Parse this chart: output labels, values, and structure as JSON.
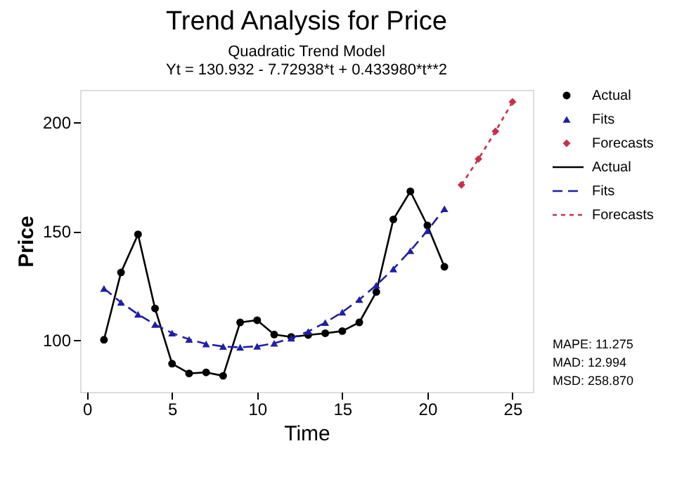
{
  "chart_data": {
    "type": "line",
    "title": "Trend Analysis for Price",
    "subtitle": "Quadratic Trend Model",
    "xlabel": "Time",
    "ylabel": "Price",
    "annotations": [
      "Yt = 130.932 - 7.72938*t  + 0.433980*t**2",
      "MAPE:      11.275",
      "MAD:       12.994",
      "MSD:     258.870"
    ],
    "series": [
      {
        "name": "Actual",
        "color": "#000000",
        "marker": "circle",
        "line_style": "solid",
        "x": [
          1,
          2,
          3,
          4,
          5,
          6,
          7,
          8,
          9,
          10,
          11,
          12,
          13,
          14,
          15,
          16,
          17,
          18,
          19,
          20,
          21
        ],
        "values": [
          100,
          131,
          148.5,
          114.4,
          89,
          84.5,
          85,
          83.4,
          108,
          109,
          102.4,
          101.3,
          102.2,
          103,
          104,
          108,
          122,
          155.4,
          168.3,
          152.6,
          133.6
        ]
      },
      {
        "name": "Fits",
        "color": "#1f1fa8",
        "marker": "triangle",
        "line_style": "dashed",
        "x": [
          1,
          2,
          3,
          4,
          5,
          6,
          7,
          8,
          9,
          10,
          11,
          12,
          13,
          14,
          15,
          16,
          17,
          18,
          19,
          20,
          21
        ],
        "values": [
          123.6,
          117.2,
          111.7,
          107.0,
          103.1,
          100.2,
          98.1,
          96.9,
          96.5,
          97.0,
          98.4,
          100.7,
          103.8,
          107.9,
          112.7,
          118.5,
          125.1,
          132.6,
          141.0,
          150.2,
          160.3
        ]
      },
      {
        "name": "Forecasts",
        "color": "#c8304a",
        "marker": "diamond",
        "line_style": "dotted",
        "x": [
          22,
          23,
          24,
          25
        ],
        "values": [
          171.3,
          183.2,
          195.9,
          209.5
        ]
      }
    ],
    "xlim": [
      -0.4,
      26.2
    ],
    "ylim": [
      76,
      215
    ],
    "xticks": [
      0,
      5,
      10,
      15,
      20,
      25
    ],
    "yticks": [
      100,
      150,
      200
    ],
    "grid": false,
    "legend": "right"
  }
}
